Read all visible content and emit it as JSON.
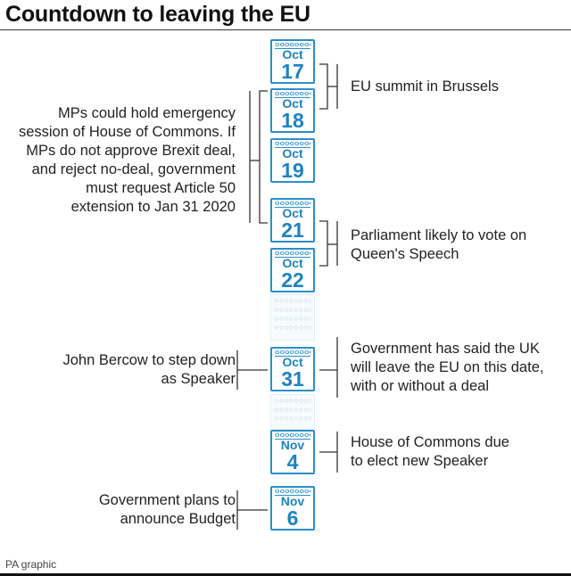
{
  "title": "Countdown to leaving the EU",
  "credit": "PA graphic",
  "accent_color": "#2b8fc7",
  "dates": [
    {
      "month": "Oct",
      "day": "17"
    },
    {
      "month": "Oct",
      "day": "18"
    },
    {
      "month": "Oct",
      "day": "19"
    },
    {
      "month": "Oct",
      "day": "21"
    },
    {
      "month": "Oct",
      "day": "22"
    },
    {
      "month": "Oct",
      "day": "31"
    },
    {
      "month": "Nov",
      "day": "4"
    },
    {
      "month": "Nov",
      "day": "6"
    }
  ],
  "events": {
    "eu_summit": "EU summit in Brussels",
    "mps_emergency": [
      "MPs could hold emergency",
      "session of House of Commons. If",
      "MPs do not approve Brexit deal,",
      "and reject no-deal, government",
      "must request Article 50",
      "extension to Jan 31 2020"
    ],
    "queens_speech": [
      "Parliament likely to vote on",
      "Queen's Speech"
    ],
    "bercow": [
      "John Bercow to step down",
      "as Speaker"
    ],
    "leave_date": [
      "Government has said the UK",
      "will leave the EU on this date,",
      "with or without a deal"
    ],
    "new_speaker": [
      "House of Commons due",
      "to elect new Speaker"
    ],
    "budget": [
      "Government plans to",
      "announce Budget"
    ]
  }
}
